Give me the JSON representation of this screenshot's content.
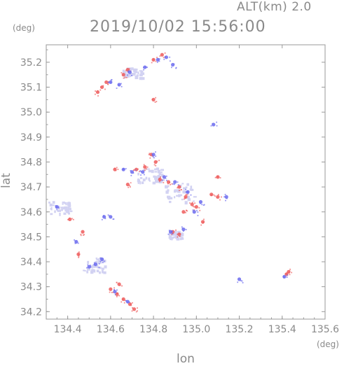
{
  "header": {
    "altitude_label": "ALT(km) 2.0",
    "timestamp": "2019/10/02 15:56:00"
  },
  "axes": {
    "x_label": "lon",
    "y_label": "lat",
    "x_unit": "(deg)",
    "y_unit": "(deg)"
  },
  "colors": {
    "positive": "#ee5b5b",
    "negative": "#6b6bee",
    "faint": "#d2d2f2",
    "axis": "#999999",
    "text": "#8a8a8a"
  },
  "chart_data": {
    "type": "scatter",
    "title": "2019/10/02 15:56:00",
    "subtitle": "ALT(km) 2.0",
    "xlabel": "lon",
    "ylabel": "lat",
    "xlim": [
      134.3,
      135.6
    ],
    "ylim": [
      34.17,
      35.27
    ],
    "x_ticks": [
      "134.4",
      "134.6",
      "134.8",
      "135.0",
      "135.2",
      "135.4",
      "135.6"
    ],
    "y_ticks": [
      "34.2",
      "34.3",
      "34.4",
      "34.5",
      "34.6",
      "34.7",
      "34.8",
      "34.9",
      "35.0",
      "35.1",
      "35.2"
    ],
    "x_tick_values": [
      134.4,
      134.6,
      134.8,
      135.0,
      135.2,
      135.4,
      135.6
    ],
    "y_tick_values": [
      34.2,
      34.3,
      34.4,
      34.5,
      34.6,
      34.7,
      34.8,
      34.9,
      35.0,
      35.1,
      35.2
    ],
    "grid": false,
    "series": [
      {
        "polarity": "positive",
        "points": [
          [
            134.84,
            35.23
          ],
          [
            134.8,
            35.21
          ],
          [
            134.68,
            35.17
          ],
          [
            134.66,
            35.15
          ],
          [
            134.58,
            35.12
          ],
          [
            134.56,
            35.1
          ],
          [
            134.8,
            35.05
          ],
          [
            134.54,
            35.08
          ],
          [
            134.79,
            34.83
          ],
          [
            134.81,
            34.8
          ],
          [
            134.76,
            34.78
          ],
          [
            134.72,
            34.77
          ],
          [
            134.83,
            34.73
          ],
          [
            134.87,
            34.72
          ],
          [
            134.92,
            34.7
          ],
          [
            134.95,
            34.66
          ],
          [
            134.98,
            34.63
          ],
          [
            135.0,
            34.62
          ],
          [
            134.94,
            34.6
          ],
          [
            135.1,
            34.66
          ],
          [
            135.07,
            34.67
          ],
          [
            135.1,
            34.74
          ],
          [
            134.89,
            34.52
          ],
          [
            134.92,
            34.51
          ],
          [
            135.03,
            34.56
          ],
          [
            134.45,
            34.43
          ],
          [
            134.41,
            34.57
          ],
          [
            134.6,
            34.29
          ],
          [
            134.63,
            34.27
          ],
          [
            134.66,
            34.25
          ],
          [
            134.69,
            34.23
          ],
          [
            134.71,
            34.21
          ],
          [
            134.64,
            34.31
          ],
          [
            135.43,
            34.36
          ],
          [
            135.42,
            34.35
          ],
          [
            134.47,
            34.52
          ],
          [
            134.62,
            34.77
          ],
          [
            134.68,
            34.71
          ]
        ]
      },
      {
        "polarity": "negative",
        "points": [
          [
            134.82,
            35.21
          ],
          [
            134.89,
            35.19
          ],
          [
            134.69,
            35.16
          ],
          [
            134.6,
            35.12
          ],
          [
            134.64,
            35.11
          ],
          [
            134.86,
            35.22
          ],
          [
            134.76,
            35.18
          ],
          [
            135.08,
            34.95
          ],
          [
            134.8,
            34.83
          ],
          [
            134.75,
            34.76
          ],
          [
            134.66,
            34.77
          ],
          [
            134.7,
            34.76
          ],
          [
            134.85,
            34.74
          ],
          [
            134.9,
            34.72
          ],
          [
            134.96,
            34.68
          ],
          [
            135.02,
            34.64
          ],
          [
            134.99,
            34.6
          ],
          [
            135.14,
            34.66
          ],
          [
            134.88,
            34.52
          ],
          [
            134.94,
            34.53
          ],
          [
            134.44,
            34.48
          ],
          [
            134.5,
            34.38
          ],
          [
            134.56,
            34.41
          ],
          [
            134.35,
            34.62
          ],
          [
            134.57,
            34.58
          ],
          [
            134.6,
            34.58
          ],
          [
            135.2,
            34.33
          ],
          [
            135.41,
            34.34
          ],
          [
            134.62,
            34.28
          ],
          [
            134.53,
            34.39
          ],
          [
            134.68,
            34.24
          ]
        ]
      }
    ]
  }
}
